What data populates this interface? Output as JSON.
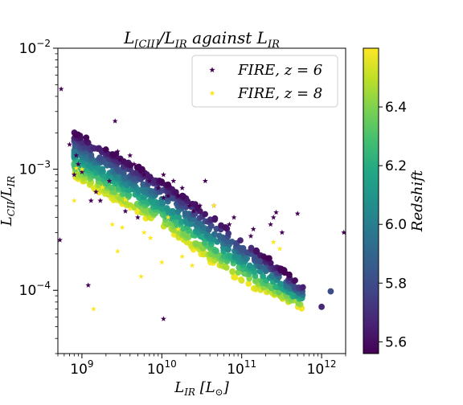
{
  "chart_data": {
    "type": "scatter",
    "title": "L[CII]/LIR against LIR",
    "title_parts": {
      "base": "L",
      "sub1": "[CII]",
      "mid": "/L",
      "sub2": "IR",
      "tail": " against L",
      "sub3": "IR"
    },
    "xlabel": "LIR [L⊙]",
    "xlabel_parts": {
      "base": "L",
      "sub": "IR",
      "tail": " [L",
      "sub2": "⊙",
      "close": "]"
    },
    "ylabel": "LCII/LIR",
    "ylabel_parts": {
      "base": "L",
      "sub1": "CII",
      "mid": "/L",
      "sub2": "IR"
    },
    "xscale": "log",
    "yscale": "log",
    "xlim": [
      500000000.0,
      2000000000000.0
    ],
    "ylim": [
      3e-05,
      0.01
    ],
    "xticks": [
      {
        "value": 1000000000.0,
        "base": "10",
        "exp": "9"
      },
      {
        "value": 10000000000.0,
        "base": "10",
        "exp": "10"
      },
      {
        "value": 100000000000.0,
        "base": "10",
        "exp": "11"
      },
      {
        "value": 1000000000000.0,
        "base": "10",
        "exp": "12"
      }
    ],
    "yticks": [
      {
        "value": 0.0001,
        "base": "10",
        "exp": "−4"
      },
      {
        "value": 0.001,
        "base": "10",
        "exp": "−3"
      },
      {
        "value": 0.01,
        "base": "10",
        "exp": "−2"
      }
    ],
    "legend": {
      "placement": "top-right",
      "entries": [
        {
          "label": "FIRE, z = 6",
          "marker": "star",
          "color": "#440154"
        },
        {
          "label": "FIRE, z = 8",
          "marker": "star",
          "color": "#fde725"
        }
      ]
    },
    "colorbar": {
      "label": "Redshift",
      "range": [
        5.56,
        6.6
      ],
      "ticks": [
        "5.6",
        "5.8",
        "6.0",
        "6.2",
        "6.4"
      ],
      "tick_values": [
        5.6,
        5.8,
        6.0,
        6.2,
        6.4
      ],
      "colormap": "viridis"
    },
    "series": [
      {
        "name": "FIRE, z = 6",
        "marker": "star",
        "color": "#440154",
        "points": [
          [
            550000000.0,
            0.0046
          ],
          [
            530000000.0,
            0.00026
          ],
          [
            700000000.0,
            0.0016
          ],
          [
            800000000.0,
            0.0009
          ],
          [
            850000000.0,
            0.0013
          ],
          [
            900000000.0,
            0.0011
          ],
          [
            1000000000.0,
            0.00095
          ],
          [
            1300000000.0,
            0.00055
          ],
          [
            1500000000.0,
            0.00065
          ],
          [
            1700000000.0,
            0.00055
          ],
          [
            1200000000.0,
            0.00011
          ],
          [
            2200000000.0,
            0.0008
          ],
          [
            2600000000.0,
            0.0025
          ],
          [
            2800000000.0,
            0.0014
          ],
          [
            3000000000.0,
            0.0012
          ],
          [
            3500000000.0,
            0.00045
          ],
          [
            4000000000.0,
            0.0013
          ],
          [
            4500000000.0,
            0.0011
          ],
          [
            5000000000.0,
            0.0004
          ],
          [
            6000000000.0,
            0.0009
          ],
          [
            7000000000.0,
            0.0008
          ],
          [
            9000000000.0,
            0.0007
          ],
          [
            10500000000.0,
            0.00058
          ],
          [
            10500000000.0,
            0.0009
          ],
          [
            12000000000.0,
            0.0006
          ],
          [
            14000000000.0,
            0.0008
          ],
          [
            16000000000.0,
            0.0006
          ],
          [
            18000000000.0,
            0.0007
          ],
          [
            22000000000.0,
            0.0005
          ],
          [
            25000000000.0,
            0.00045
          ],
          [
            30000000000.0,
            0.0005
          ],
          [
            35000000000.0,
            0.0008
          ],
          [
            45000000000.0,
            0.0005
          ],
          [
            10500000000.0,
            5.8e-05
          ],
          [
            70000000000.0,
            0.00035
          ],
          [
            80000000000.0,
            0.0004
          ],
          [
            130000000000.0,
            0.00028
          ],
          [
            140000000000.0,
            0.00032
          ],
          [
            230000000000.0,
            0.00035
          ],
          [
            250000000000.0,
            0.0004
          ],
          [
            270000000000.0,
            0.00044
          ],
          [
            320000000000.0,
            0.0003
          ],
          [
            500000000000.0,
            0.00043
          ],
          [
            1900000000000.0,
            0.0003
          ]
        ]
      },
      {
        "name": "FIRE, z = 8",
        "marker": "star",
        "color": "#fde725",
        "points": [
          [
            800000000.0,
            0.00055
          ],
          [
            850000000.0,
            0.00102
          ],
          [
            1000000000.0,
            0.001
          ],
          [
            1400000000.0,
            7e-05
          ],
          [
            1800000000.0,
            0.00071
          ],
          [
            2400000000.0,
            0.00035
          ],
          [
            2800000000.0,
            0.00021
          ],
          [
            3200000000.0,
            0.00033
          ],
          [
            3500000000.0,
            0.00056
          ],
          [
            4000000000.0,
            0.00047
          ],
          [
            5000000000.0,
            0.00045
          ],
          [
            5500000000.0,
            0.00013
          ],
          [
            6000000000.0,
            0.0003
          ],
          [
            7200000000.0,
            0.00027
          ],
          [
            10000000000.0,
            0.00017
          ],
          [
            12000000000.0,
            0.0004
          ],
          [
            16000000000.0,
            0.00032
          ],
          [
            18000000000.0,
            0.00019
          ],
          [
            24000000000.0,
            0.00016
          ],
          [
            45000000000.0,
            0.0005
          ],
          [
            250000000000.0,
            0.00025
          ],
          [
            300000000000.0,
            0.00022
          ]
        ]
      }
    ],
    "circle_population": {
      "marker": "circle",
      "color_by": "redshift",
      "trend": "dense diagonal band; higher redshift lies below lower redshift at fixed LIR",
      "band": [
        {
          "LIR": 800000000.0,
          "ratio_at_z5_6": 0.00205,
          "ratio_at_z6_6": 0.00085
        },
        {
          "LIR": 10000000000.0,
          "ratio_at_z5_6": 0.00082,
          "ratio_at_z6_6": 0.00033
        },
        {
          "LIR": 100000000000.0,
          "ratio_at_z5_6": 0.00028,
          "ratio_at_z6_6": 0.000115
        },
        {
          "LIR": 600000000000.0,
          "ratio_at_z5_6": 0.000105,
          "ratio_at_z6_6": 7e-05
        }
      ],
      "outliers": [
        {
          "LIR": 1300000000000.0,
          "ratio": 9.8e-05,
          "redshift": 5.8
        },
        {
          "LIR": 1000000000000.0,
          "ratio": 7.3e-05,
          "redshift": 5.68
        }
      ]
    }
  }
}
